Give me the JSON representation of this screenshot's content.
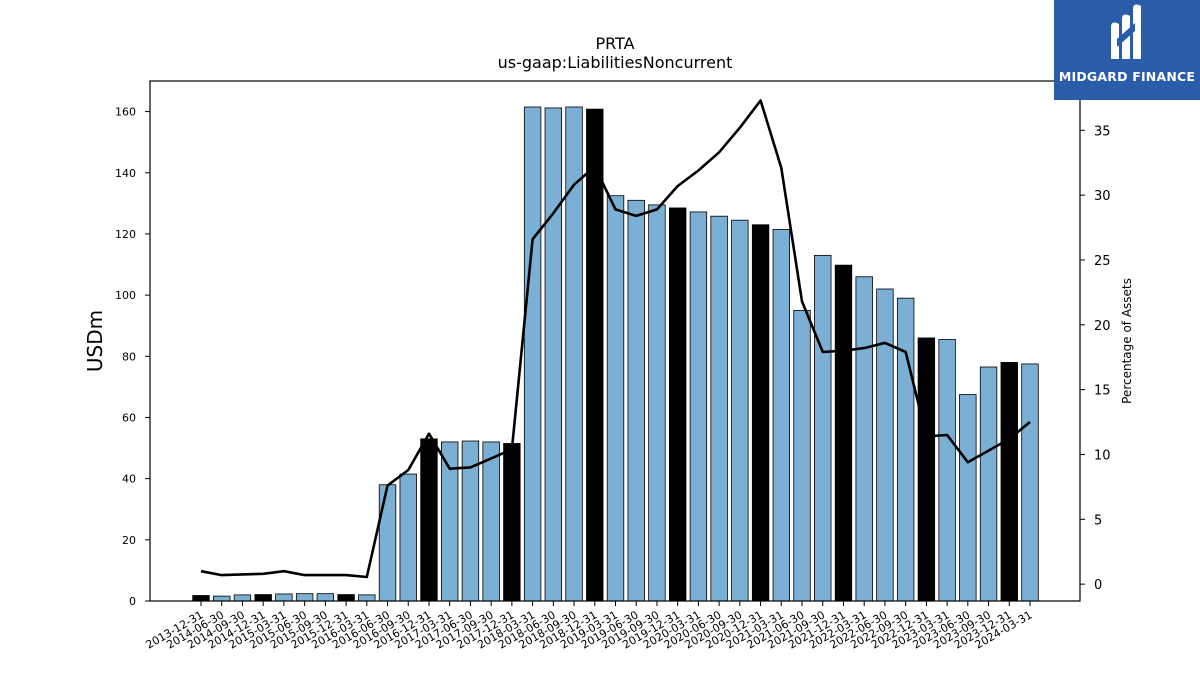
{
  "brand": {
    "name": "MIDGARD FINANCE",
    "bg_color": "#2a5caa"
  },
  "colors": {
    "bar": "#7bafd4",
    "bar_annual": "#000000",
    "line": "#000000"
  },
  "chart_data": {
    "type": "bar",
    "title": "PRTA",
    "subtitle": "us-gaap:LiabilitiesNoncurrent",
    "ylabel": "USDm",
    "y2label": "Percentage of Assets",
    "ylim": [
      0,
      170
    ],
    "y2lim": [
      -1.3,
      38.8
    ],
    "yticks": [
      0,
      20,
      40,
      60,
      80,
      100,
      120,
      140,
      160
    ],
    "y2ticks": [
      0,
      5,
      10,
      15,
      20,
      25,
      30,
      35
    ],
    "grid": false,
    "categories": [
      "2013-12-31",
      "2014-06-30",
      "2014-09-30",
      "2014-12-31",
      "2015-03-31",
      "2015-06-30",
      "2015-09-30",
      "2015-12-31",
      "2016-03-31",
      "2016-06-30",
      "2016-09-30",
      "2016-12-31",
      "2017-03-31",
      "2017-06-30",
      "2017-09-30",
      "2017-12-31",
      "2018-03-31",
      "2018-06-30",
      "2018-09-30",
      "2018-12-31",
      "2019-03-31",
      "2019-06-30",
      "2019-09-30",
      "2019-12-31",
      "2020-03-31",
      "2020-06-30",
      "2020-09-30",
      "2020-12-31",
      "2021-03-31",
      "2021-06-30",
      "2021-09-30",
      "2021-12-31",
      "2022-03-31",
      "2022-06-30",
      "2022-09-30",
      "2022-12-31",
      "2023-03-31",
      "2023-06-30",
      "2023-09-30",
      "2023-12-31",
      "2024-03-31"
    ],
    "series": [
      {
        "kind": "bar",
        "values": [
          1.8,
          1.6,
          2.0,
          2.1,
          2.3,
          2.4,
          2.4,
          2.1,
          2.0,
          38.0,
          41.5,
          53.0,
          52.0,
          52.3,
          52.0,
          51.5,
          161.5,
          161.2,
          161.5,
          160.8,
          132.5,
          131.0,
          129.5,
          128.5,
          127.2,
          125.8,
          124.5,
          123.0,
          121.5,
          95.0,
          113.0,
          109.8,
          106.0,
          102.0,
          99.0,
          86.0,
          85.5,
          67.5,
          76.5,
          78.0,
          77.5
        ],
        "annual": [
          true,
          false,
          false,
          true,
          false,
          false,
          false,
          true,
          false,
          false,
          false,
          true,
          false,
          false,
          false,
          true,
          false,
          false,
          false,
          true,
          false,
          false,
          false,
          true,
          false,
          false,
          false,
          true,
          false,
          false,
          false,
          true,
          false,
          false,
          false,
          true,
          false,
          false,
          false,
          true,
          false
        ]
      },
      {
        "kind": "line",
        "axis": "right",
        "values": [
          1.0,
          0.7,
          0.75,
          0.8,
          1.0,
          0.7,
          0.7,
          0.7,
          0.55,
          7.6,
          8.8,
          11.6,
          8.9,
          9.0,
          9.7,
          10.4,
          26.6,
          28.6,
          30.8,
          32.2,
          28.9,
          28.4,
          28.9,
          30.7,
          31.9,
          33.3,
          35.2,
          37.3,
          32.1,
          21.8,
          17.9,
          18.0,
          18.2,
          18.6,
          17.9,
          11.4,
          11.5,
          9.4,
          10.3,
          11.2,
          12.5
        ]
      }
    ]
  }
}
